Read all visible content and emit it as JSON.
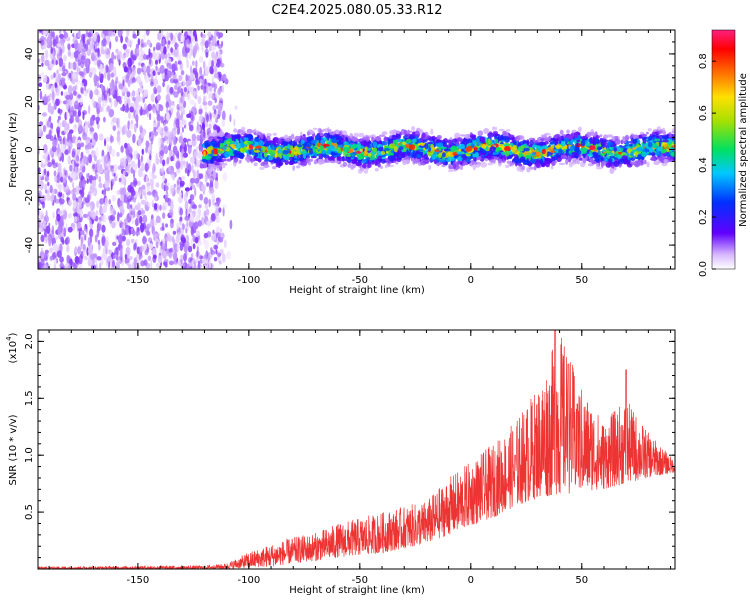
{
  "title": "C2E4.2025.080.05.33.R12",
  "chart_data": [
    {
      "type": "heatmap",
      "xlabel": "Height of straight line (km)",
      "ylabel": "Frequency (Hz)",
      "xlim": [
        -195,
        92
      ],
      "ylim": [
        -50,
        50
      ],
      "xticks": [
        -150,
        -100,
        -50,
        0,
        50
      ],
      "yticks": [
        -40,
        -20,
        0,
        20,
        40
      ],
      "colorbar": {
        "label": "Normalized spectral amplitude",
        "range": [
          0,
          0.92
        ],
        "ticks": [
          0.0,
          0.2,
          0.4,
          0.6,
          0.8
        ]
      },
      "regions": [
        {
          "x_range": [
            -195,
            -112
          ],
          "freq_range": [
            -50,
            50
          ],
          "amplitude_range": [
            0.02,
            0.12
          ]
        },
        {
          "x_range": [
            -120,
            92
          ],
          "freq_center": 0,
          "freq_halfwidth": 8,
          "amplitude_range": [
            0.05,
            0.9
          ]
        }
      ],
      "grid": false
    },
    {
      "type": "line",
      "xlabel": "Height of straight line (km)",
      "ylabel": "SNR (10 * v/v)",
      "y_multiplier": "(x10",
      "y_multiplier_exp": "4",
      "xlim": [
        -195,
        92
      ],
      "ylim": [
        0,
        2.1
      ],
      "xticks": [
        -150,
        -100,
        -50,
        0,
        50
      ],
      "yticks": [
        0.5,
        1.0,
        1.5,
        2.0
      ],
      "color": "#ee3333",
      "envelope": {
        "x": [
          -195,
          -120,
          -110,
          -100,
          -90,
          -80,
          -70,
          -60,
          -50,
          -40,
          -30,
          -20,
          -10,
          0,
          10,
          20,
          30,
          40,
          50,
          60,
          70,
          80,
          92
        ],
        "low": [
          0.0,
          0.0,
          0.0,
          0.01,
          0.02,
          0.05,
          0.07,
          0.1,
          0.12,
          0.14,
          0.18,
          0.22,
          0.3,
          0.38,
          0.45,
          0.55,
          0.62,
          0.65,
          0.68,
          0.7,
          0.75,
          0.8,
          0.85
        ],
        "high": [
          0.02,
          0.03,
          0.05,
          0.15,
          0.22,
          0.28,
          0.32,
          0.4,
          0.45,
          0.5,
          0.55,
          0.6,
          0.8,
          0.95,
          1.1,
          1.3,
          1.6,
          2.1,
          1.6,
          1.3,
          1.5,
          1.2,
          0.95
        ]
      },
      "peaks": [
        {
          "x": 20,
          "y": 1.0
        },
        {
          "x": 38,
          "y": 2.1
        },
        {
          "x": 44,
          "y": 1.8
        },
        {
          "x": 48,
          "y": 1.45
        },
        {
          "x": 70,
          "y": 1.75
        }
      ],
      "grid": false
    }
  ]
}
